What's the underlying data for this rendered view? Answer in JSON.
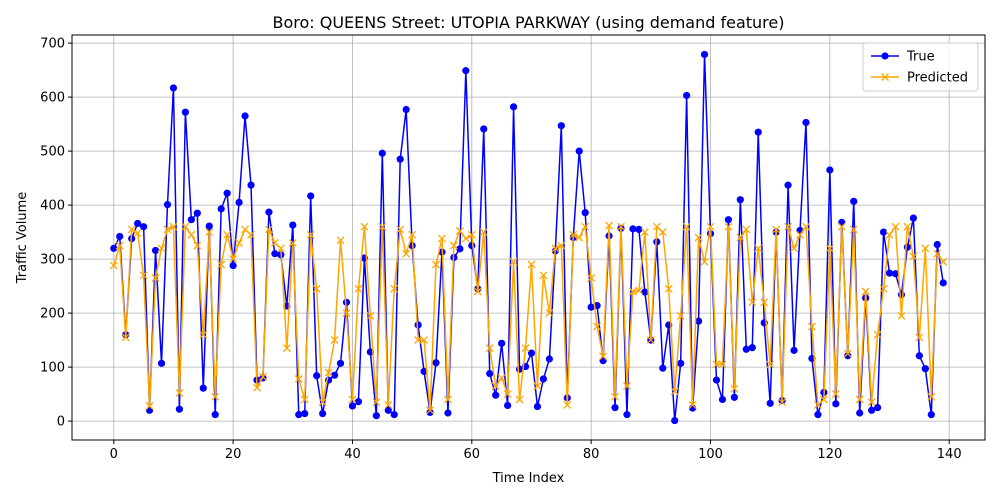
{
  "chart_data": {
    "type": "line",
    "title": "Boro: QUEENS Street: UTOPIA PARKWAY (using demand feature)",
    "xlabel": "Time Index",
    "ylabel": "Traffic Volume",
    "xlim": [
      -7,
      146
    ],
    "ylim": [
      -35,
      715
    ],
    "xticks": [
      0,
      20,
      40,
      60,
      80,
      100,
      120,
      140
    ],
    "yticks": [
      0,
      100,
      200,
      300,
      400,
      500,
      600,
      700
    ],
    "grid": true,
    "legend_position": "top-right",
    "series": [
      {
        "name": "True",
        "color": "#0000ff",
        "marker": "circle",
        "values": [
          320,
          342,
          160,
          338,
          366,
          360,
          20,
          316,
          107,
          401,
          617,
          22,
          572,
          373,
          385,
          61,
          361,
          12,
          393,
          422,
          288,
          405,
          565,
          437,
          76,
          80,
          387,
          310,
          308,
          213,
          363,
          12,
          14,
          417,
          84,
          14,
          76,
          85,
          107,
          220,
          28,
          36,
          302,
          128,
          10,
          496,
          20,
          12,
          485,
          577,
          325,
          178,
          92,
          16,
          108,
          313,
          15,
          303,
          319,
          649,
          325,
          245,
          541,
          88,
          48,
          144,
          29,
          582,
          96,
          101,
          126,
          27,
          78,
          115,
          315,
          547,
          43,
          340,
          500,
          386,
          211,
          214,
          112,
          343,
          25,
          357,
          12,
          356,
          355,
          239,
          150,
          332,
          98,
          178,
          1,
          107,
          603,
          24,
          185,
          679,
          347,
          76,
          40,
          373,
          44,
          410,
          133,
          136,
          535,
          182,
          33,
          350,
          38,
          437,
          131,
          353,
          553,
          116,
          12,
          53,
          465,
          32,
          368,
          121,
          407,
          15,
          228,
          20,
          25,
          350,
          274,
          273,
          234,
          322,
          376,
          121,
          97,
          12,
          327,
          256
        ]
      },
      {
        "name": "Predicted",
        "color": "#ffa500",
        "marker": "x",
        "values": [
          288,
          325,
          155,
          355,
          348,
          270,
          28,
          265,
          320,
          355,
          360,
          52,
          360,
          345,
          325,
          160,
          350,
          45,
          290,
          345,
          300,
          330,
          355,
          345,
          62,
          82,
          355,
          330,
          320,
          135,
          330,
          78,
          40,
          345,
          245,
          35,
          90,
          150,
          335,
          200,
          40,
          245,
          360,
          195,
          35,
          360,
          30,
          245,
          355,
          310,
          345,
          150,
          150,
          20,
          290,
          338,
          40,
          325,
          352,
          338,
          345,
          240,
          350,
          135,
          65,
          80,
          50,
          295,
          40,
          135,
          290,
          65,
          270,
          200,
          320,
          325,
          30,
          345,
          340,
          360,
          265,
          175,
          120,
          362,
          45,
          360,
          65,
          240,
          242,
          350,
          150,
          360,
          350,
          245,
          55,
          195,
          360,
          30,
          340,
          295,
          360,
          105,
          105,
          360,
          60,
          340,
          355,
          220,
          320,
          220,
          105,
          355,
          35,
          360,
          320,
          345,
          360,
          175,
          30,
          40,
          320,
          50,
          360,
          125,
          355,
          40,
          240,
          35,
          160,
          245,
          345,
          360,
          195,
          360,
          305,
          155,
          320,
          45,
          310,
          295
        ]
      }
    ]
  }
}
